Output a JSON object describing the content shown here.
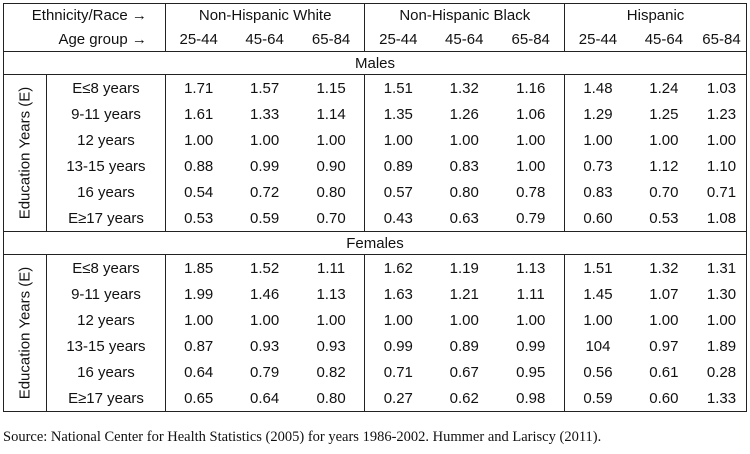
{
  "header": {
    "ethnicity_label": "Ethnicity/Race →",
    "age_label": "Age group →",
    "groups": [
      "Non-Hispanic White",
      "Non-Hispanic Black",
      "Hispanic"
    ],
    "ages": [
      "25-44",
      "45-64",
      "65-84"
    ]
  },
  "row_axis_label": "Education Years (E)",
  "sections": [
    {
      "title": "Males",
      "rows": [
        {
          "label": "E≤8 years",
          "values": [
            "1.71",
            "1.57",
            "1.15",
            "1.51",
            "1.32",
            "1.16",
            "1.48",
            "1.24",
            "1.03"
          ]
        },
        {
          "label": "9-11 years",
          "values": [
            "1.61",
            "1.33",
            "1.14",
            "1.35",
            "1.26",
            "1.06",
            "1.29",
            "1.25",
            "1.23"
          ]
        },
        {
          "label": "12 years",
          "values": [
            "1.00",
            "1.00",
            "1.00",
            "1.00",
            "1.00",
            "1.00",
            "1.00",
            "1.00",
            "1.00"
          ]
        },
        {
          "label": "13-15 years",
          "values": [
            "0.88",
            "0.99",
            "0.90",
            "0.89",
            "0.83",
            "1.00",
            "0.73",
            "1.12",
            "1.10"
          ]
        },
        {
          "label": "16 years",
          "values": [
            "0.54",
            "0.72",
            "0.80",
            "0.57",
            "0.80",
            "0.78",
            "0.83",
            "0.70",
            "0.71"
          ]
        },
        {
          "label": "E≥17 years",
          "values": [
            "0.53",
            "0.59",
            "0.70",
            "0.43",
            "0.63",
            "0.79",
            "0.60",
            "0.53",
            "1.08"
          ]
        }
      ]
    },
    {
      "title": "Females",
      "rows": [
        {
          "label": "E≤8 years",
          "values": [
            "1.85",
            "1.52",
            "1.11",
            "1.62",
            "1.19",
            "1.13",
            "1.51",
            "1.32",
            "1.31"
          ]
        },
        {
          "label": "9-11 years",
          "values": [
            "1.99",
            "1.46",
            "1.13",
            "1.63",
            "1.21",
            "1.11",
            "1.45",
            "1.07",
            "1.30"
          ]
        },
        {
          "label": "12 years",
          "values": [
            "1.00",
            "1.00",
            "1.00",
            "1.00",
            "1.00",
            "1.00",
            "1.00",
            "1.00",
            "1.00"
          ]
        },
        {
          "label": "13-15 years",
          "values": [
            "0.87",
            "0.93",
            "0.93",
            "0.99",
            "0.89",
            "0.99",
            "104",
            "0.97",
            "1.89"
          ]
        },
        {
          "label": "16 years",
          "values": [
            "0.64",
            "0.79",
            "0.82",
            "0.71",
            "0.67",
            "0.95",
            "0.56",
            "0.61",
            "0.28"
          ]
        },
        {
          "label": "E≥17 years",
          "values": [
            "0.65",
            "0.64",
            "0.80",
            "0.27",
            "0.62",
            "0.98",
            "0.59",
            "0.60",
            "1.33"
          ]
        }
      ]
    }
  ],
  "source": "Source: National Center for Health Statistics (2005) for years 1986-2002. Hummer and Lariscy (2011)."
}
